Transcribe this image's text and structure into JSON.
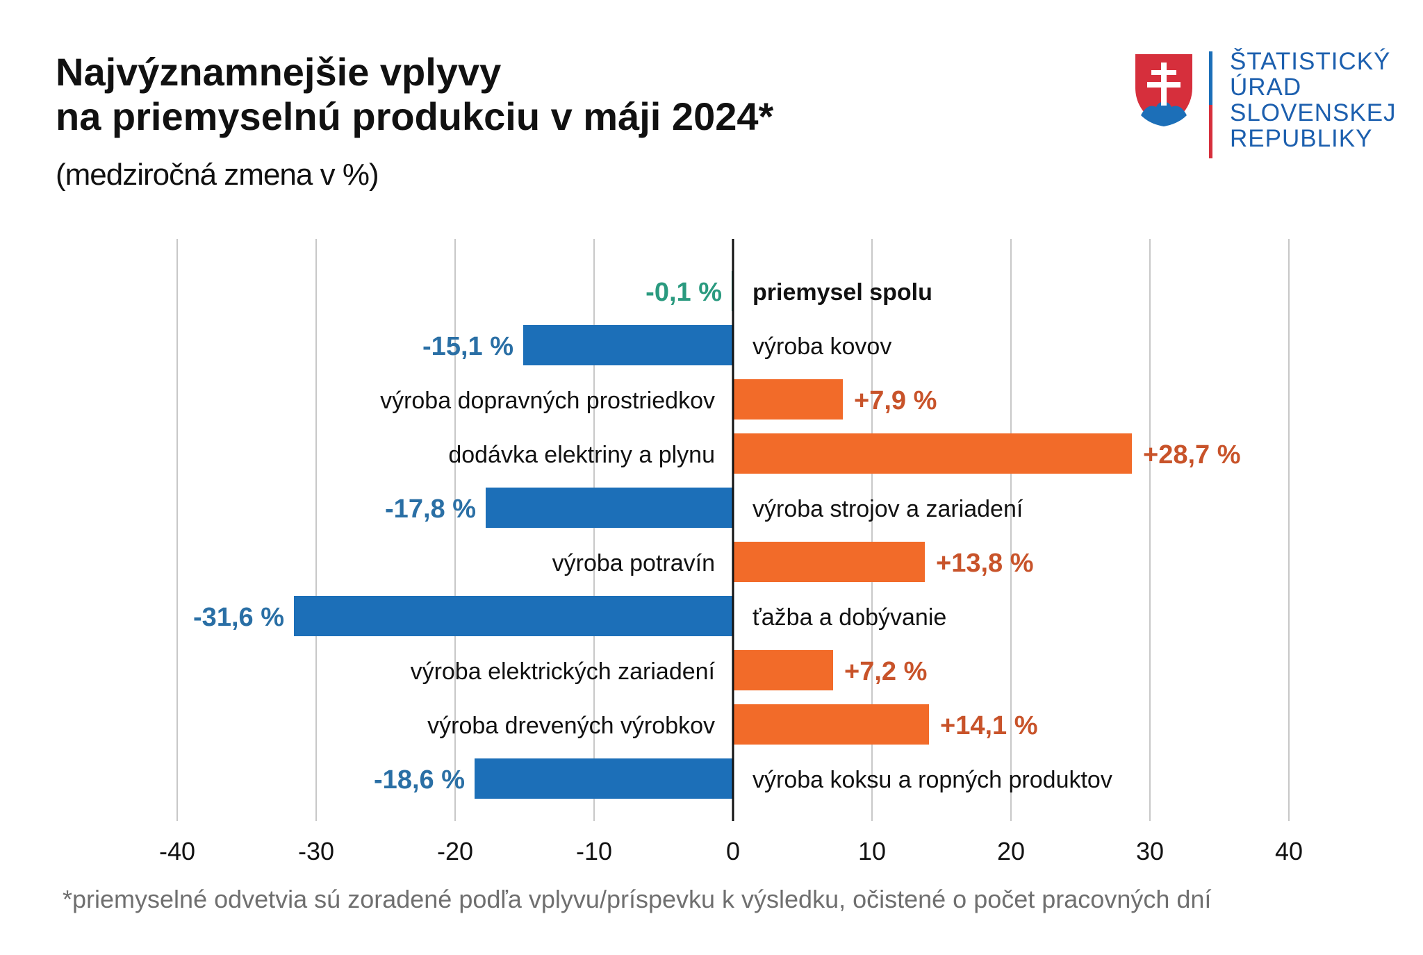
{
  "title_lines": [
    "Najvýznamnejšie vplyvy",
    "na priemyselnú produkciu v máji 2024*"
  ],
  "subtitle": "(medziročná zmena v %)",
  "logo": {
    "lines": [
      "ŠTATISTICKÝ",
      "ÚRAD",
      "SLOVENSKEJ",
      "REPUBLIKY"
    ]
  },
  "footnote": "*priemyselné odvetvia sú zoradené podľa vplyvu/príspevku k výsledku, očistené o počet pracovných dní",
  "colors": {
    "negative": "#1c6fb8",
    "positive": "#f26b29",
    "total": "#2a9a7f",
    "negative_label": "#2a6fa5",
    "positive_label": "#c8532a",
    "logo_blue": "#1c5fae",
    "logo_red": "#d62f3c"
  },
  "chart_data": {
    "type": "bar",
    "orientation": "horizontal",
    "categories": [
      "priemysel spolu",
      "výroba kovov",
      "výroba dopravných prostriedkov",
      "dodávka elektriny a plynu",
      "výroba strojov a zariadení",
      "výroba potravín",
      "ťažba a dobývanie",
      "výroba elektrických zariadení",
      "výroba drevených výrobkov",
      "výroba koksu a ropných produktov"
    ],
    "values": [
      -0.1,
      -15.1,
      7.9,
      28.7,
      -17.8,
      13.8,
      -31.6,
      7.2,
      14.1,
      -18.6
    ],
    "value_labels": [
      "-0,1 %",
      "-15,1 %",
      "+7,9 %",
      "+28,7 %",
      "-17,8 %",
      "+13,8 %",
      "-31,6 %",
      "+7,2 %",
      "+14,1 %",
      "-18,6 %"
    ],
    "xlim": [
      -40,
      40
    ],
    "xticks": [
      -40,
      -30,
      -20,
      -10,
      0,
      10,
      20,
      30,
      40
    ],
    "xtick_labels": [
      "-40",
      "-30",
      "-20",
      "-10",
      "0",
      "10",
      "20",
      "30",
      "40"
    ],
    "grid": "vertical",
    "legend": "none"
  }
}
